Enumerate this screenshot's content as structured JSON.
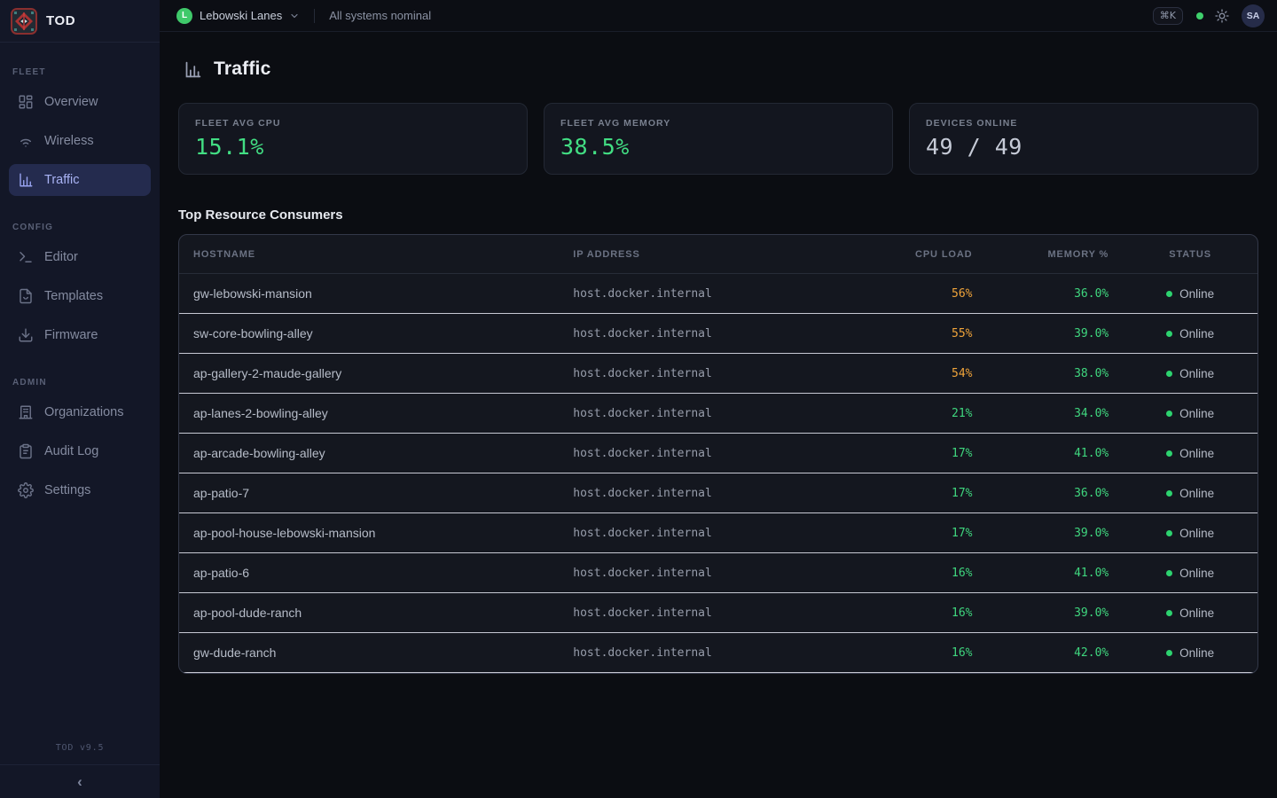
{
  "brand": {
    "name": "TOD"
  },
  "sidebar": {
    "sections": [
      {
        "label": "FLEET",
        "items": [
          {
            "label": "Overview",
            "icon": "grid-icon",
            "active": false
          },
          {
            "label": "Wireless",
            "icon": "wifi-icon",
            "active": false
          },
          {
            "label": "Traffic",
            "icon": "bar-chart-icon",
            "active": true
          }
        ]
      },
      {
        "label": "CONFIG",
        "items": [
          {
            "label": "Editor",
            "icon": "terminal-icon",
            "active": false
          },
          {
            "label": "Templates",
            "icon": "file-code-icon",
            "active": false
          },
          {
            "label": "Firmware",
            "icon": "download-icon",
            "active": false
          }
        ]
      },
      {
        "label": "ADMIN",
        "items": [
          {
            "label": "Organizations",
            "icon": "building-icon",
            "active": false
          },
          {
            "label": "Audit Log",
            "icon": "clipboard-icon",
            "active": false
          },
          {
            "label": "Settings",
            "icon": "gear-icon",
            "active": false
          }
        ]
      }
    ],
    "version": "TOD v9.5",
    "collapse_glyph": "‹"
  },
  "topbar": {
    "org_initial": "L",
    "org_name": "Lebowski Lanes",
    "status_text": "All systems nominal",
    "shortcut_label": "⌘K",
    "user_initials": "SA"
  },
  "page": {
    "title": "Traffic"
  },
  "stats": [
    {
      "label": "FLEET AVG CPU",
      "value": "15.1%",
      "tone": "green"
    },
    {
      "label": "FLEET AVG MEMORY",
      "value": "38.5%",
      "tone": "green"
    },
    {
      "label": "DEVICES ONLINE",
      "value": "49 / 49",
      "tone": "neutral"
    }
  ],
  "table": {
    "title": "Top Resource Consumers",
    "columns": [
      "HOSTNAME",
      "IP ADDRESS",
      "CPU LOAD",
      "MEMORY %",
      "STATUS"
    ],
    "rows": [
      {
        "hostname": "gw-lebowski-mansion",
        "ip": "host.docker.internal",
        "cpu": "56%",
        "cpu_level": "warn",
        "memory": "36.0%",
        "status": "Online"
      },
      {
        "hostname": "sw-core-bowling-alley",
        "ip": "host.docker.internal",
        "cpu": "55%",
        "cpu_level": "warn",
        "memory": "39.0%",
        "status": "Online"
      },
      {
        "hostname": "ap-gallery-2-maude-gallery",
        "ip": "host.docker.internal",
        "cpu": "54%",
        "cpu_level": "warn",
        "memory": "38.0%",
        "status": "Online"
      },
      {
        "hostname": "ap-lanes-2-bowling-alley",
        "ip": "host.docker.internal",
        "cpu": "21%",
        "cpu_level": "ok",
        "memory": "34.0%",
        "status": "Online"
      },
      {
        "hostname": "ap-arcade-bowling-alley",
        "ip": "host.docker.internal",
        "cpu": "17%",
        "cpu_level": "ok",
        "memory": "41.0%",
        "status": "Online"
      },
      {
        "hostname": "ap-patio-7",
        "ip": "host.docker.internal",
        "cpu": "17%",
        "cpu_level": "ok",
        "memory": "36.0%",
        "status": "Online"
      },
      {
        "hostname": "ap-pool-house-lebowski-mansion",
        "ip": "host.docker.internal",
        "cpu": "17%",
        "cpu_level": "ok",
        "memory": "39.0%",
        "status": "Online"
      },
      {
        "hostname": "ap-patio-6",
        "ip": "host.docker.internal",
        "cpu": "16%",
        "cpu_level": "ok",
        "memory": "41.0%",
        "status": "Online"
      },
      {
        "hostname": "ap-pool-dude-ranch",
        "ip": "host.docker.internal",
        "cpu": "16%",
        "cpu_level": "ok",
        "memory": "39.0%",
        "status": "Online"
      },
      {
        "hostname": "gw-dude-ranch",
        "ip": "host.docker.internal",
        "cpu": "16%",
        "cpu_level": "ok",
        "memory": "42.0%",
        "status": "Online"
      }
    ]
  },
  "colors": {
    "accent_green": "#42de83",
    "warn_orange": "#f0a43a",
    "status_online": "#2dd36f",
    "active_nav_bg": "#242b4e",
    "active_nav_text": "#a9b3f4",
    "sidebar_bg": "#131727",
    "page_bg": "#0b0d12"
  }
}
